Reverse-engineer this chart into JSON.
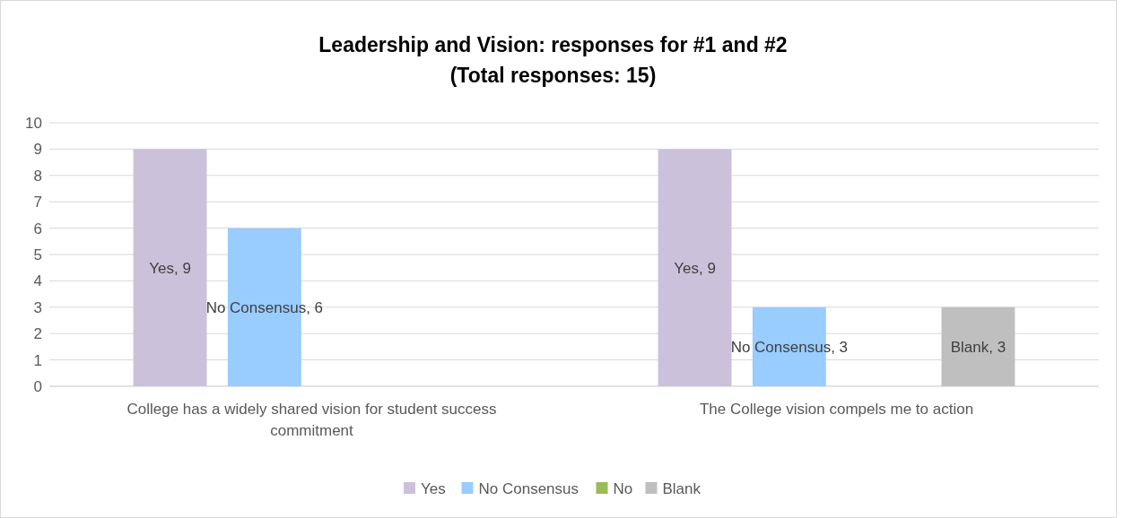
{
  "chart_data": {
    "type": "bar",
    "title": "Leadership and Vision:  responses for #1 and #2\n(Total responses: 15)",
    "categories": [
      "College has a widely shared vision for student success commitment",
      "The College vision compels me to action"
    ],
    "series": [
      {
        "name": "Yes",
        "color": "#ccc1da",
        "values": [
          9,
          9
        ],
        "value_labels": [
          "Yes, 9",
          "Yes, 9"
        ]
      },
      {
        "name": "No Consensus",
        "color": "#99ccff",
        "values": [
          6,
          3
        ],
        "value_labels": [
          "No Consensus, 6",
          "No Consensus, 3"
        ]
      },
      {
        "name": "No",
        "color": "#9bbb59",
        "values": [
          null,
          null
        ],
        "value_labels": [
          null,
          null
        ]
      },
      {
        "name": "Blank",
        "color": "#bfbfbf",
        "values": [
          null,
          3
        ],
        "value_labels": [
          null,
          "Blank, 3"
        ]
      }
    ],
    "ylim": [
      0,
      10
    ],
    "yticks": [
      0,
      1,
      2,
      3,
      4,
      5,
      6,
      7,
      8,
      9,
      10
    ],
    "grid": "y",
    "legend": "bottom"
  }
}
